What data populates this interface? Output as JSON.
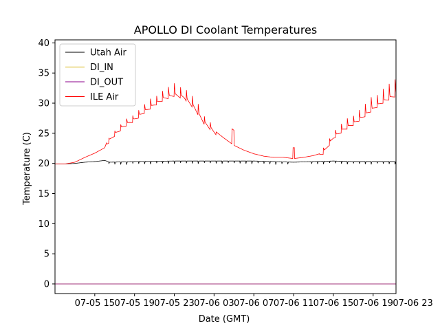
{
  "chart_data": {
    "type": "line",
    "title": "APOLLO DI Coolant Temperatures",
    "xlabel": "Date (GMT)",
    "ylabel": "Temperature (C)",
    "xlim_hours": [
      0,
      34.3
    ],
    "ylim": [
      -1.6,
      40.5
    ],
    "grid": false,
    "legend_position": "top-left",
    "x_ticks": [
      {
        "label": "07-05 15",
        "hour": 4
      },
      {
        "label": "07-05 19",
        "hour": 8
      },
      {
        "label": "07-05 23",
        "hour": 12
      },
      {
        "label": "07-06 03",
        "hour": 16
      },
      {
        "label": "07-06 07",
        "hour": 20
      },
      {
        "label": "07-06 11",
        "hour": 24
      },
      {
        "label": "07-06 15",
        "hour": 28
      },
      {
        "label": "07-06 19",
        "hour": 32
      },
      {
        "label": "07-06 23",
        "hour": 36
      }
    ],
    "y_ticks": [
      0,
      5,
      10,
      15,
      20,
      25,
      30,
      35,
      40
    ],
    "series": [
      {
        "name": "Utah Air",
        "color": "#000000",
        "x": [
          0,
          1,
          2,
          3,
          4,
          5,
          5.5,
          8,
          12,
          16,
          20,
          22,
          24,
          26,
          28,
          30,
          32,
          34.3
        ],
        "y": [
          19.9,
          19.9,
          20.0,
          20.2,
          20.3,
          20.5,
          20.2,
          20.3,
          20.4,
          20.4,
          20.4,
          20.3,
          20.2,
          20.3,
          20.4,
          20.3,
          20.3,
          20.3
        ]
      },
      {
        "name": "DI_IN",
        "color": "#d4b000",
        "x": [
          0,
          34.3
        ],
        "y": [
          0,
          0
        ]
      },
      {
        "name": "DI_OUT",
        "color": "#8b008b",
        "x": [
          0,
          34.3
        ],
        "y": [
          0,
          0
        ]
      },
      {
        "name": "ILE Air",
        "color": "#ff0000",
        "x": [
          0,
          1,
          2,
          3,
          4,
          5,
          5.2,
          6,
          7,
          8,
          9,
          10,
          11,
          12,
          13,
          14,
          15,
          16,
          17,
          18,
          19,
          20,
          21,
          22,
          22.3,
          23,
          24,
          25,
          26,
          26.6,
          27,
          28,
          29,
          30,
          31,
          32,
          33,
          34.3
        ],
        "y": [
          19.9,
          19.9,
          20.2,
          21.0,
          21.7,
          22.6,
          23.5,
          25.0,
          26.5,
          27.5,
          28.8,
          30.0,
          31.0,
          31.6,
          31.2,
          29.5,
          27.0,
          25.5,
          24.2,
          23.0,
          22.2,
          21.6,
          21.2,
          21.0,
          21.0,
          21.0,
          20.8,
          21.0,
          21.3,
          21.6,
          22.0,
          24.5,
          25.8,
          26.8,
          28.0,
          29.3,
          30.5,
          31.6
        ]
      }
    ]
  }
}
